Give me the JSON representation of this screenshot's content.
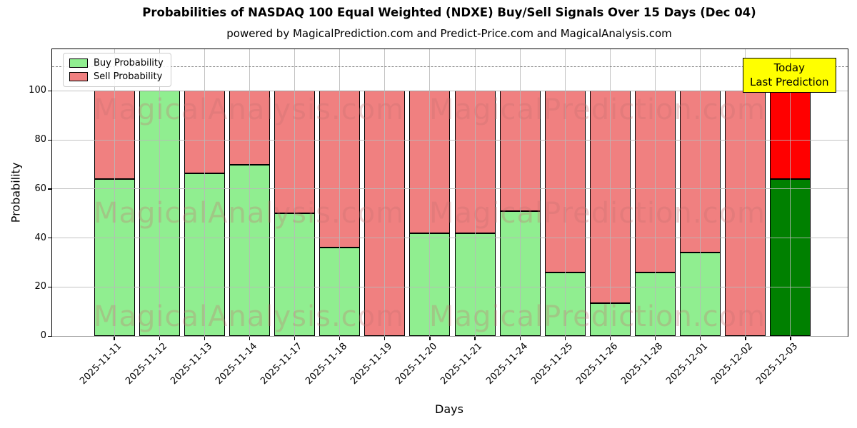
{
  "header": {
    "title": "Probabilities of NASDAQ 100 Equal Weighted (NDXE) Buy/Sell Signals Over 15 Days (Dec 04)",
    "subtitle": "powered by MagicalPrediction.com and Predict-Price.com and MagicalAnalysis.com"
  },
  "legend": {
    "items": [
      {
        "label": "Buy Probability",
        "color": "#90ee90"
      },
      {
        "label": "Sell Probability",
        "color": "#f08080"
      }
    ]
  },
  "annotation": {
    "line1": "Today",
    "line2": "Last Prediction",
    "bg_color": "#ffff00"
  },
  "watermarks": {
    "left": "MagicalAnalysis.com",
    "right": "MagicalPrediction.com"
  },
  "colors": {
    "buy": "#90ee90",
    "sell": "#f08080",
    "buy_today": "#008000",
    "sell_today": "#ff0000",
    "grid": "#b9b9b9",
    "dashed_line": "#7f7f7f",
    "bar_edge": "#000000"
  },
  "chart_data": {
    "type": "bar",
    "stacked": true,
    "title": "Probabilities of NASDAQ 100 Equal Weighted (NDXE) Buy/Sell Signals Over 15 Days (Dec 04)",
    "xlabel": "Days",
    "ylabel": "Probability",
    "categories": [
      "2025-11-11",
      "2025-11-12",
      "2025-11-13",
      "2025-11-14",
      "2025-11-17",
      "2025-11-18",
      "2025-11-19",
      "2025-11-20",
      "2025-11-21",
      "2025-11-24",
      "2025-11-25",
      "2025-11-26",
      "2025-11-28",
      "2025-12-01",
      "2025-12-02",
      "2025-12-03"
    ],
    "series": [
      {
        "name": "Buy Probability",
        "color": "#90ee90",
        "today_color": "#008000",
        "values": [
          64,
          100,
          66.5,
          70,
          50,
          36,
          0,
          42,
          42,
          51,
          26,
          13.5,
          26,
          34,
          0,
          64
        ]
      },
      {
        "name": "Sell Probability",
        "color": "#f08080",
        "today_color": "#ff0000",
        "values": [
          36,
          0,
          33.5,
          30,
          50,
          64,
          100,
          58,
          58,
          49,
          74,
          86.5,
          74,
          66,
          100,
          36
        ]
      }
    ],
    "today_index": 15,
    "yticks": [
      0,
      20,
      40,
      60,
      80,
      100
    ],
    "ylim": [
      0,
      117
    ],
    "dashed_line_y": 110,
    "grid": true,
    "legend_position": "upper left"
  }
}
